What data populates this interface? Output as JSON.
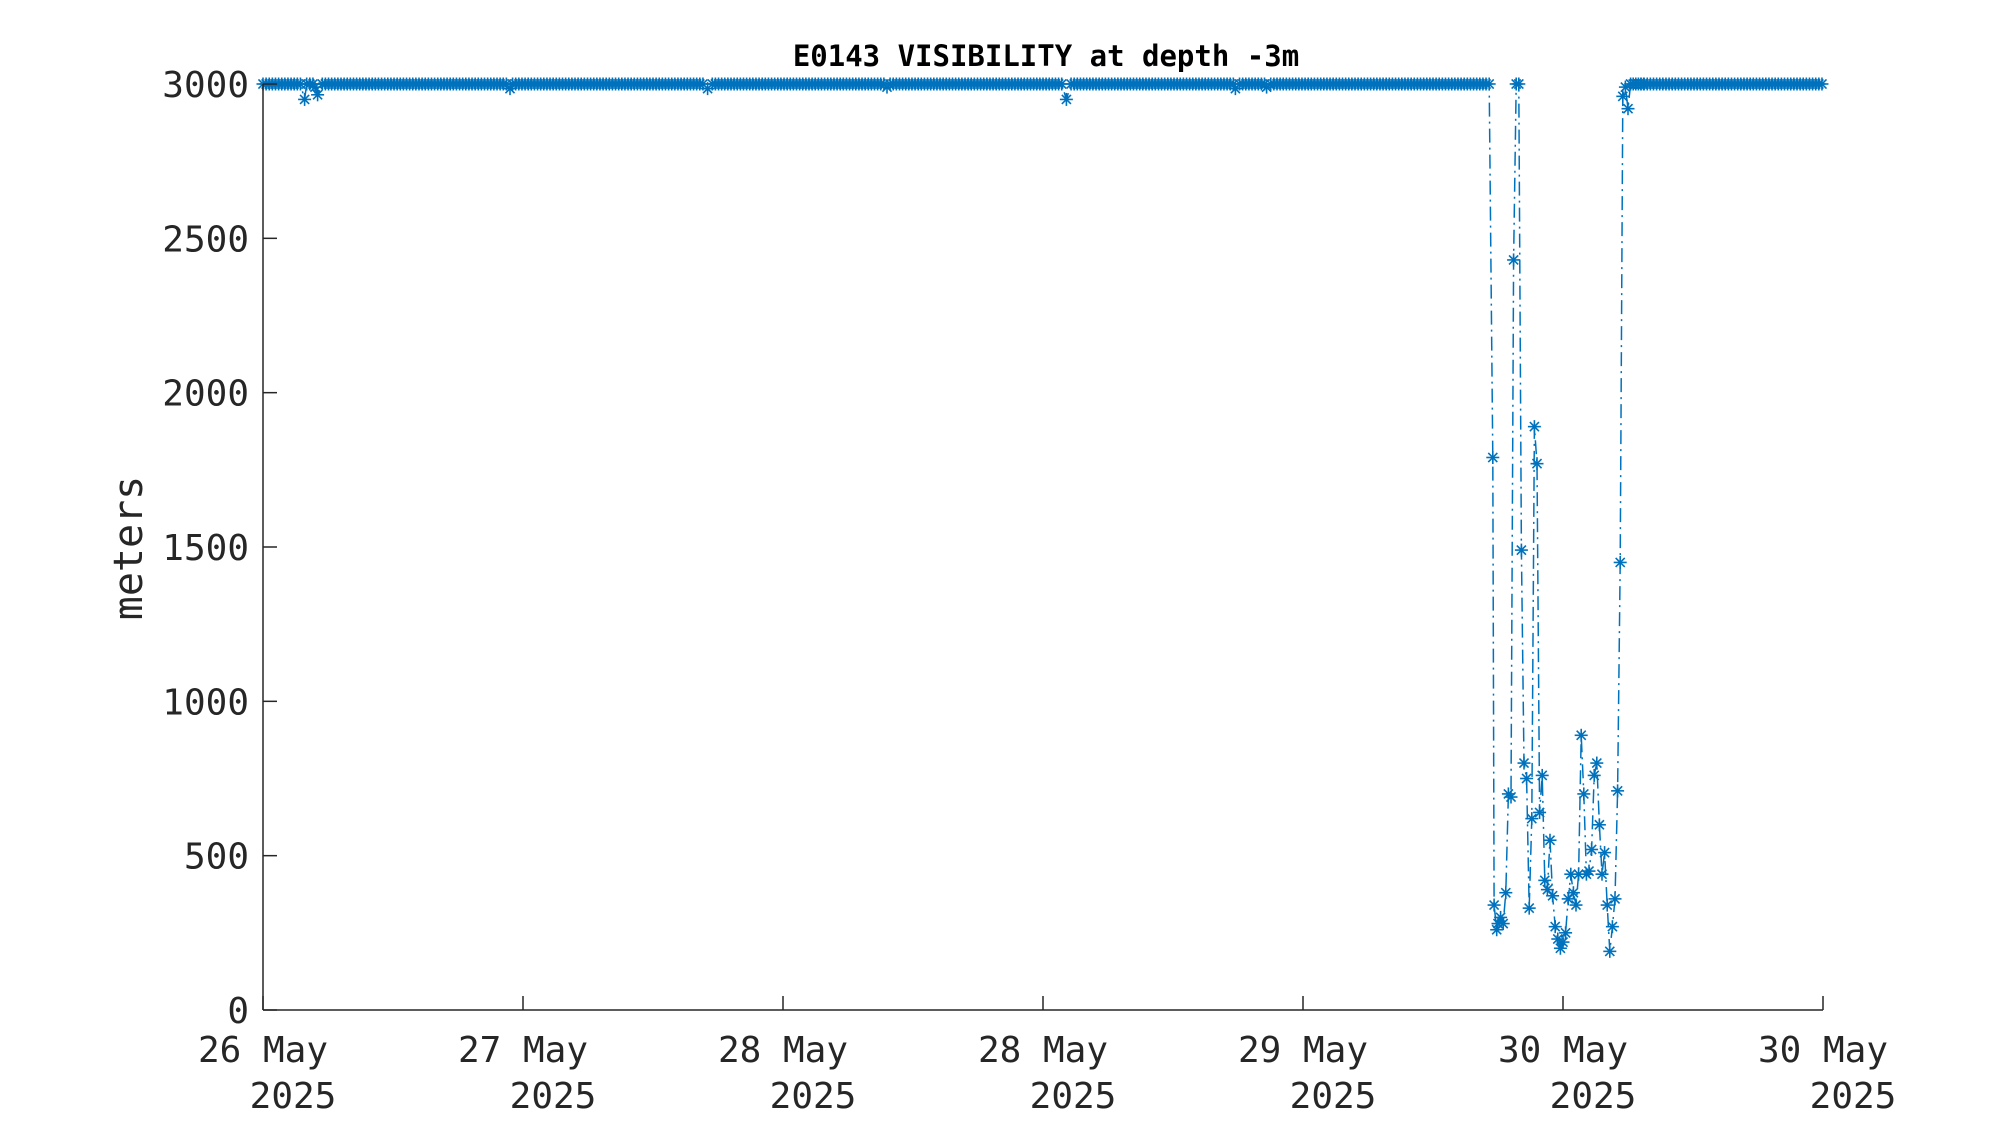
{
  "chart_data": {
    "type": "line",
    "title": "E0143 VISIBILITY at depth -3m",
    "xlabel": "",
    "ylabel": "meters",
    "xlim": [
      0,
      6
    ],
    "ylim": [
      0,
      3000
    ],
    "yticks": [
      0,
      500,
      1000,
      1500,
      2000,
      2500,
      3000
    ],
    "xticks": [
      {
        "pos": 0,
        "line1": "26 May",
        "line2": "2025"
      },
      {
        "pos": 1,
        "line1": "27 May",
        "line2": "2025"
      },
      {
        "pos": 2,
        "line1": "28 May",
        "line2": "2025"
      },
      {
        "pos": 3,
        "line1": "28 May",
        "line2": "2025"
      },
      {
        "pos": 4,
        "line1": "29 May",
        "line2": "2025"
      },
      {
        "pos": 5,
        "line1": "30 May",
        "line2": "2025"
      },
      {
        "pos": 6,
        "line1": "30 May",
        "line2": "2025"
      }
    ],
    "grid": false,
    "marker": "asterisk",
    "line_style": "dash-dot",
    "color": "#0072BD",
    "series": [
      {
        "name": "",
        "x": [
          0.16,
          0.2,
          0.21,
          0.95,
          1.71,
          2.4,
          3.09,
          3.74,
          3.86,
          4.73,
          4.735,
          4.745,
          4.75,
          4.76,
          4.77,
          4.78,
          4.79,
          4.8,
          4.81,
          4.82,
          4.83,
          4.84,
          4.85,
          4.86,
          4.87,
          4.88,
          4.89,
          4.9,
          4.91,
          4.92,
          4.93,
          4.94,
          4.95,
          4.96,
          4.97,
          4.98,
          4.99,
          5.0,
          5.01,
          5.02,
          5.03,
          5.04,
          5.05,
          5.06,
          5.07,
          5.08,
          5.09,
          5.1,
          5.11,
          5.12,
          5.13,
          5.14,
          5.15,
          5.16,
          5.17,
          5.18,
          5.19,
          5.2,
          5.21,
          5.22,
          5.23,
          5.24,
          5.25,
          5.26,
          5.27,
          5.28,
          5.29,
          5.3,
          5.31
        ],
        "y": [
          2950,
          2990,
          2965,
          2985,
          2985,
          2990,
          2950,
          2985,
          2990,
          1790,
          340,
          260,
          280,
          300,
          280,
          380,
          700,
          690,
          2430,
          3000,
          3000,
          1490,
          800,
          750,
          330,
          620,
          1890,
          1770,
          640,
          760,
          420,
          390,
          550,
          370,
          270,
          230,
          200,
          220,
          250,
          360,
          440,
          380,
          340,
          440,
          890,
          700,
          440,
          450,
          520,
          760,
          800,
          600,
          440,
          510,
          340,
          190,
          270,
          360,
          710,
          1450,
          2960,
          2990,
          2920,
          3000,
          3000,
          3000,
          3000,
          3000,
          3000
        ],
        "baseline_value": 3000,
        "baseline_ranges": [
          [
            0,
            4.73
          ],
          [
            5.3,
            6.0
          ]
        ]
      }
    ]
  }
}
